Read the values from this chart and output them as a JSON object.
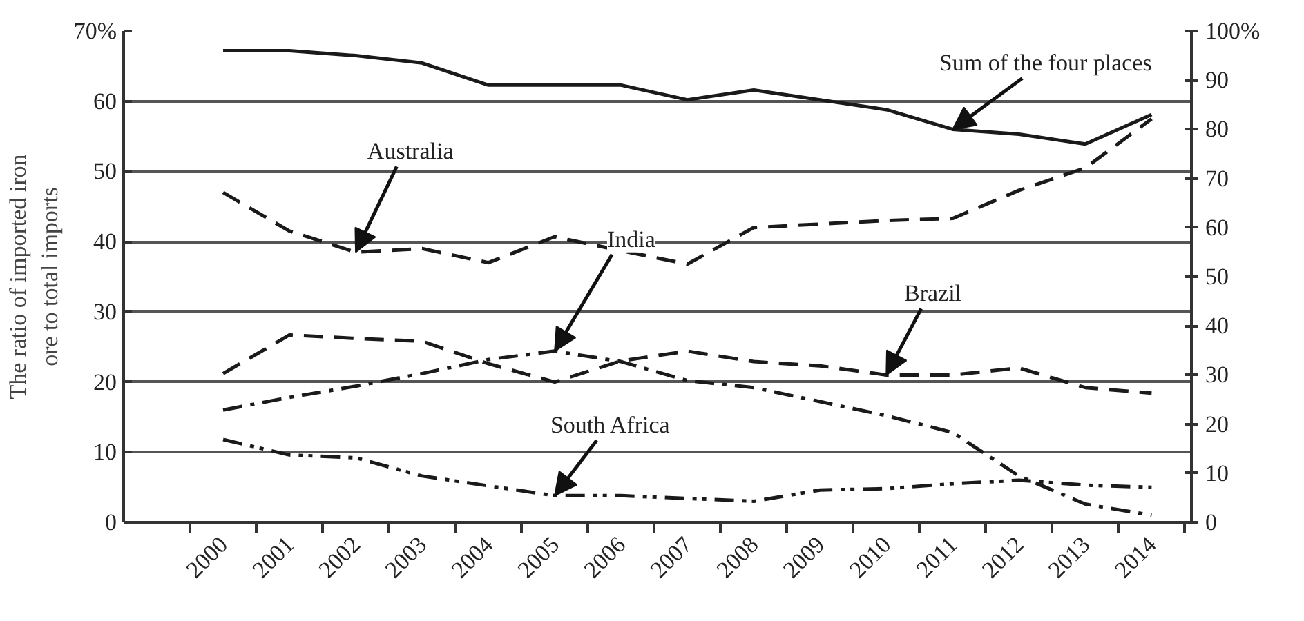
{
  "chart_data": {
    "type": "line",
    "ylabel": "The ratio of imported iron ore to total imports",
    "categories": [
      "2000",
      "2001",
      "2002",
      "2003",
      "2004",
      "2005",
      "2006",
      "2007",
      "2008",
      "2009",
      "2010",
      "2011",
      "2012",
      "2013",
      "2014"
    ],
    "series": [
      {
        "color": "#1a1a1a",
        "line_style": "solid",
        "axis": "y2",
        "values": [
          96,
          96,
          95,
          93.5,
          89,
          89,
          89,
          86,
          88,
          86,
          84,
          80,
          79,
          77,
          83
        ]
      },
      {
        "color": "#1a1a1a",
        "line_style": "dashed",
        "values": [
          47,
          41.5,
          38.5,
          39,
          37,
          40.7,
          38.7,
          36.8,
          42,
          42.5,
          43,
          43.3,
          47.3,
          50.5,
          57.5
        ]
      },
      {
        "color": "#1a1a1a",
        "line_style": "dashed",
        "values": [
          21.2,
          26.7,
          26.2,
          25.8,
          22.6,
          20,
          23,
          24.4,
          22.9,
          22.3,
          21,
          21,
          22,
          19.2,
          18.4
        ]
      },
      {
        "color": "#1a1a1a",
        "line_style": "dashdot",
        "values": [
          16,
          17.8,
          19.4,
          21.2,
          23.2,
          24.4,
          22.9,
          20.2,
          19.2,
          17.2,
          15.2,
          12.8,
          6.6,
          2.6,
          1
        ]
      },
      {
        "color": "#1a1a1a",
        "line_style": "dashdotdot",
        "values": [
          11.8,
          9.6,
          9.2,
          6.6,
          5.2,
          3.8,
          3.8,
          3.4,
          3,
          4.6,
          4.8,
          5.5,
          6,
          5.3,
          5
        ]
      }
    ],
    "annotations": [
      {
        "text": "Sum of the four places",
        "x": "2011",
        "y": 56
      },
      {
        "text": "Australia",
        "x": "2002",
        "y": 38.5
      },
      {
        "text": "India",
        "x": "2005",
        "y": 24.4
      },
      {
        "text": "Brazil",
        "x": "2010",
        "y": 21
      },
      {
        "text": "South Africa",
        "x": "2005",
        "y": 3.8
      }
    ],
    "ylim": [
      0,
      70
    ],
    "yticks": [
      0,
      10,
      20,
      30,
      40,
      50,
      60,
      {
        "value": 70,
        "label": "70%"
      }
    ],
    "y2lim": [
      0,
      100
    ],
    "y2ticks": [
      0,
      10,
      20,
      30,
      40,
      50,
      60,
      70,
      80,
      90,
      {
        "value": 100,
        "label": "100%"
      }
    ],
    "grid": "y",
    "marker": "none"
  }
}
